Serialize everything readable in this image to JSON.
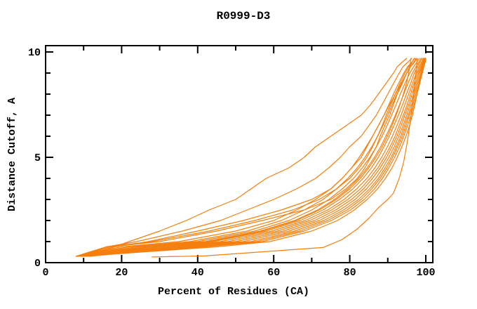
{
  "window": {
    "background": "#ffffff"
  },
  "chart_data": {
    "type": "line",
    "title": "R0999-D3",
    "xlabel": "Percent of Residues (CA)",
    "ylabel": "Distance Cutoff, A",
    "xlim": [
      0,
      100
    ],
    "ylim": [
      0,
      10
    ],
    "x_major_ticks": [
      0,
      20,
      40,
      60,
      80,
      100
    ],
    "x_minor_ticks": [
      10,
      30,
      50,
      70,
      90
    ],
    "y_major_ticks": [
      0,
      5,
      10
    ],
    "y_minor_ticks": [
      1,
      2,
      3,
      4,
      6,
      7,
      8,
      9
    ],
    "grid": "off",
    "legend": "none",
    "line_color": "#f57f0d",
    "axis_color": "#000000",
    "cutoff_levels": [
      0.3,
      0.5,
      0.75,
      1,
      1.5,
      2,
      2.5,
      3,
      3.5,
      4,
      4.5,
      5,
      5.5,
      6,
      6.5,
      7,
      7.5,
      8,
      8.5,
      9,
      9.3,
      9.55,
      9.7
    ],
    "curves_percent": [
      [
        10,
        14,
        18,
        22,
        30,
        37,
        43,
        50,
        54,
        58,
        64,
        68,
        71,
        75,
        79,
        83,
        85.5,
        87.5,
        89.5,
        91.5,
        92.5,
        94,
        95
      ],
      [
        9,
        12,
        16,
        24,
        36,
        46,
        53,
        60,
        66,
        71,
        74.5,
        77.5,
        80,
        83,
        85,
        87,
        88.5,
        90,
        91.5,
        93,
        94,
        95.5,
        96.3
      ],
      [
        9.5,
        13,
        18,
        27,
        40,
        52,
        62,
        70,
        75,
        78,
        80.5,
        83,
        84.5,
        86,
        87.5,
        89,
        90.5,
        92,
        93.5,
        95,
        95.8,
        96.5,
        97
      ],
      [
        8.5,
        12,
        17,
        30,
        45,
        57,
        68,
        75,
        79,
        82,
        84,
        85.5,
        87,
        88,
        89.2,
        90.5,
        91.5,
        92.5,
        93.8,
        95,
        96,
        97,
        97.5
      ],
      [
        8,
        11.5,
        16,
        28,
        43,
        55,
        65,
        72,
        76.5,
        80,
        82.5,
        84.5,
        86,
        87.3,
        88.5,
        89.6,
        90.8,
        92,
        93.2,
        94.5,
        95.5,
        96.5,
        97
      ],
      [
        8,
        12,
        20,
        35,
        50,
        60,
        66,
        71,
        75,
        78,
        80.5,
        82.5,
        84.3,
        86,
        87.5,
        89,
        90.3,
        91.5,
        92.8,
        94.2,
        95.2,
        96.5,
        97.2
      ],
      [
        8.3,
        13,
        22,
        38,
        53,
        62,
        68,
        73,
        76.5,
        79.5,
        82,
        84,
        85.8,
        87.3,
        88.7,
        90,
        91.2,
        92.4,
        93.6,
        95,
        96,
        97.2,
        97.8
      ],
      [
        8.6,
        14,
        24,
        40,
        55,
        64,
        70,
        74.5,
        78,
        81,
        83.3,
        85.3,
        87,
        88.5,
        89.8,
        91,
        92.2,
        93.3,
        94.5,
        95.8,
        96.8,
        97.8,
        98.3
      ],
      [
        9,
        15,
        26,
        42,
        56.5,
        65.5,
        71.5,
        76,
        79.5,
        82.3,
        84.6,
        86.5,
        88.1,
        89.5,
        90.8,
        92,
        93.1,
        94.2,
        95.3,
        96.5,
        97.4,
        98.3,
        98.7
      ],
      [
        9.3,
        16,
        28,
        44,
        58,
        67,
        73,
        77.3,
        80.8,
        83.5,
        85.7,
        87.5,
        89,
        90.4,
        91.6,
        92.8,
        93.9,
        94.9,
        96,
        97,
        97.8,
        98.6,
        99
      ],
      [
        9.6,
        17,
        30,
        46,
        59.5,
        68.3,
        74.2,
        78.5,
        81.8,
        84.5,
        86.6,
        88.4,
        89.9,
        91.2,
        92.4,
        93.5,
        94.5,
        95.5,
        96.5,
        97.5,
        98.2,
        99,
        99.3
      ],
      [
        10,
        18,
        32,
        48,
        61,
        69.5,
        75.2,
        79.5,
        82.8,
        85.3,
        87.4,
        89.1,
        90.6,
        91.9,
        93,
        94.1,
        95.1,
        96,
        96.9,
        97.8,
        98.5,
        99.2,
        99.5
      ],
      [
        10.3,
        19,
        34,
        50,
        62.5,
        70.8,
        76.3,
        80.5,
        83.6,
        86,
        88,
        89.7,
        91.1,
        92.4,
        93.5,
        94.5,
        95.5,
        96.4,
        97.3,
        98.1,
        98.8,
        99.4,
        99.7
      ],
      [
        10.6,
        20,
        36,
        52,
        64,
        72,
        77.4,
        81.4,
        84.4,
        86.8,
        88.7,
        90.3,
        91.7,
        92.9,
        94,
        95,
        95.9,
        96.8,
        97.6,
        98.4,
        99,
        99.6,
        99.8
      ],
      [
        11,
        21,
        38,
        54,
        65.5,
        73.2,
        78.4,
        82.3,
        85.2,
        87.5,
        89.3,
        90.9,
        92.2,
        93.4,
        94.4,
        95.4,
        96.3,
        97.1,
        97.9,
        98.7,
        99.2,
        99.7,
        99.9
      ],
      [
        11,
        22,
        40,
        55.5,
        66.8,
        74.2,
        79.3,
        83,
        85.8,
        88,
        89.8,
        91.3,
        92.6,
        93.8,
        94.8,
        95.7,
        96.6,
        97.4,
        98.2,
        98.9,
        99.4,
        99.8,
        100
      ],
      [
        11.5,
        23,
        42,
        57,
        68,
        75.2,
        80.2,
        83.8,
        86.5,
        88.6,
        90.3,
        91.8,
        93.1,
        94.2,
        95.2,
        96.1,
        96.9,
        97.7,
        98.4,
        99.1,
        99.5,
        99.9,
        100
      ],
      [
        9.4,
        25,
        45,
        59,
        70,
        76.8,
        81.2,
        84.6,
        87.3,
        89.4,
        91.1,
        92.5,
        93.7,
        94.8,
        95.7,
        96.5,
        97.1,
        97.7,
        98.2,
        98.7,
        99.1,
        99.5,
        99.7
      ],
      [
        9.2,
        15.5,
        27,
        43,
        57,
        66,
        72,
        76.5,
        80,
        82.8,
        85,
        86.9,
        88.5,
        89.9,
        91.1,
        92.2,
        93.2,
        94.1,
        94.9,
        95.5,
        95.8,
        96,
        96.1
      ]
    ],
    "best_model_points": [
      [
        28,
        0.27
      ],
      [
        42,
        0.32
      ],
      [
        52,
        0.45
      ],
      [
        62,
        0.58
      ],
      [
        73,
        0.72
      ],
      [
        78,
        1.1
      ],
      [
        82,
        1.6
      ],
      [
        85,
        2.1
      ],
      [
        87.5,
        2.6
      ],
      [
        90,
        3.0
      ],
      [
        91.5,
        3.3
      ],
      [
        93,
        4.0
      ],
      [
        94.2,
        4.8
      ],
      [
        95.2,
        5.8
      ],
      [
        96,
        6.8
      ],
      [
        96.6,
        7.7
      ],
      [
        97.1,
        8.5
      ],
      [
        97.5,
        9.2
      ],
      [
        97.8,
        9.65
      ]
    ]
  }
}
